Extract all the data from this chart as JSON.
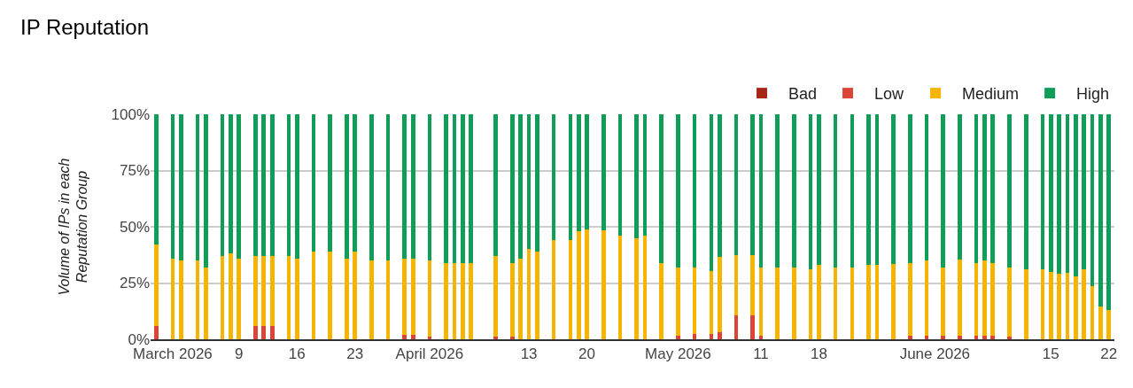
{
  "chart_data": {
    "type": "bar",
    "title": "IP Reputation",
    "ylabel": "Volume of IPs in each\nReputation Group",
    "stacked": true,
    "grid": "y",
    "legend": "top right",
    "x": [
      "2026-02-27",
      "2026-03-01",
      "2026-03-02",
      "2026-03-04",
      "2026-03-05",
      "2026-03-07",
      "2026-03-08",
      "2026-03-09",
      "2026-03-11",
      "2026-03-12",
      "2026-03-13",
      "2026-03-15",
      "2026-03-16",
      "2026-03-18",
      "2026-03-20",
      "2026-03-22",
      "2026-03-23",
      "2026-03-25",
      "2026-03-27",
      "2026-03-29",
      "2026-03-30",
      "2026-04-01",
      "2026-04-03",
      "2026-04-04",
      "2026-04-05",
      "2026-04-06",
      "2026-04-09",
      "2026-04-11",
      "2026-04-12",
      "2026-04-13",
      "2026-04-14",
      "2026-04-16",
      "2026-04-18",
      "2026-04-19",
      "2026-04-20",
      "2026-04-22",
      "2026-04-24",
      "2026-04-26",
      "2026-04-27",
      "2026-04-29",
      "2026-05-01",
      "2026-05-03",
      "2026-05-05",
      "2026-05-06",
      "2026-05-08",
      "2026-05-10",
      "2026-05-11",
      "2026-05-13",
      "2026-05-15",
      "2026-05-17",
      "2026-05-18",
      "2026-05-20",
      "2026-05-22",
      "2026-05-24",
      "2026-05-25",
      "2026-05-27",
      "2026-05-29",
      "2026-05-31",
      "2026-06-02",
      "2026-06-04",
      "2026-06-06",
      "2026-06-07",
      "2026-06-08",
      "2026-06-10",
      "2026-06-12",
      "2026-06-14",
      "2026-06-15",
      "2026-06-16",
      "2026-06-17",
      "2026-06-18",
      "2026-06-19",
      "2026-06-20",
      "2026-06-21",
      "2026-06-22"
    ],
    "series": [
      {
        "name": "Bad",
        "color": "#a52714",
        "values": [
          0,
          0,
          0,
          0,
          0,
          0,
          0,
          0,
          0,
          0,
          0,
          0,
          0,
          0,
          0,
          0,
          0,
          0,
          0,
          0,
          0,
          0,
          0,
          0,
          0,
          0,
          0,
          0,
          0,
          0,
          0,
          0,
          0,
          0,
          0,
          0,
          0,
          0,
          0,
          0,
          0,
          0,
          0,
          0,
          0,
          0,
          0,
          0,
          0,
          0,
          0,
          0,
          0,
          0,
          0,
          0,
          0,
          0,
          0,
          0,
          0,
          0,
          0,
          0,
          0,
          0,
          0,
          0,
          0,
          0,
          0,
          0,
          0,
          0
        ]
      },
      {
        "name": "Low",
        "color": "#db4437",
        "values": [
          6,
          0,
          0,
          0,
          0,
          0,
          0,
          0,
          6,
          6,
          6,
          0,
          0,
          0,
          0,
          0,
          0,
          0,
          0,
          2,
          2,
          1,
          0,
          0,
          0,
          0,
          1,
          1,
          0,
          0,
          0,
          0,
          0,
          0,
          0,
          0,
          0,
          0,
          0,
          0,
          1.5,
          2.5,
          2.5,
          3,
          10.5,
          10.5,
          1.5,
          0,
          0,
          0,
          0,
          0,
          0,
          0,
          0,
          0,
          1.5,
          1.5,
          1.5,
          1.5,
          1.5,
          1.5,
          1.5,
          1,
          0,
          0,
          0,
          0,
          0,
          0,
          0,
          0,
          0,
          0
        ]
      },
      {
        "name": "Medium",
        "color": "#f4b400",
        "values": [
          36,
          36,
          35,
          35,
          32,
          37,
          38,
          36,
          31,
          31,
          31,
          37,
          36,
          39,
          39,
          36,
          39,
          35,
          35,
          34,
          34,
          34,
          34,
          34,
          34,
          34,
          36,
          33,
          36,
          40,
          39,
          44,
          44,
          48,
          49,
          48.5,
          46,
          45,
          46,
          34,
          30.5,
          29.5,
          28,
          33.5,
          27,
          27,
          30.5,
          32,
          32,
          31,
          33,
          32,
          32,
          33,
          33,
          33.5,
          32.5,
          33.5,
          30.5,
          34,
          32.5,
          33.5,
          32.5,
          31,
          31,
          31,
          30,
          29,
          29.5,
          28,
          31,
          23.5,
          14.5,
          13
        ]
      },
      {
        "name": "High",
        "color": "#0f9d58",
        "values": [
          58,
          64,
          65,
          65,
          68,
          63,
          62,
          64,
          63,
          63,
          63,
          63,
          64,
          61,
          61,
          64,
          61,
          65,
          65,
          64,
          64,
          65,
          66,
          66,
          66,
          66,
          63,
          66,
          64,
          60,
          61,
          56,
          56,
          52,
          51,
          51.5,
          54,
          55,
          54,
          66,
          68,
          68,
          69.5,
          63.5,
          62.5,
          62.5,
          68,
          68,
          68,
          69,
          67,
          68,
          68,
          67,
          67,
          66.5,
          66,
          65,
          68,
          64.5,
          66,
          65,
          66,
          68,
          69,
          69,
          70,
          71,
          70.5,
          72,
          69,
          76.5,
          85.5,
          87
        ]
      }
    ],
    "xlim": [
      "2026-02-26T08:00",
      "2026-06-22T16:00"
    ],
    "xticks": [
      {
        "value": "2026-03-01",
        "label": "March 2026"
      },
      {
        "value": "2026-03-09",
        "label": "9"
      },
      {
        "value": "2026-03-16",
        "label": "16"
      },
      {
        "value": "2026-03-23",
        "label": "23"
      },
      {
        "value": "2026-04-01",
        "label": "April 2026"
      },
      {
        "value": "2026-04-13",
        "label": "13"
      },
      {
        "value": "2026-04-20",
        "label": "20"
      },
      {
        "value": "2026-05-01",
        "label": "May 2026"
      },
      {
        "value": "2026-05-11",
        "label": "11"
      },
      {
        "value": "2026-05-18",
        "label": "18"
      },
      {
        "value": "2026-06-01",
        "label": "June 2026"
      },
      {
        "value": "2026-06-15",
        "label": "15"
      },
      {
        "value": "2026-06-22",
        "label": "22"
      }
    ],
    "ylim": [
      0,
      100
    ],
    "yticks": [
      {
        "value": 0,
        "label": "0%"
      },
      {
        "value": 25,
        "label": "25%"
      },
      {
        "value": 50,
        "label": "50%"
      },
      {
        "value": 75,
        "label": "75%"
      },
      {
        "value": 100,
        "label": "100%"
      }
    ]
  }
}
